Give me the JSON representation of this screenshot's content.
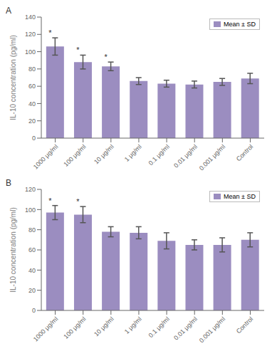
{
  "chart_data": [
    {
      "type": "bar",
      "title": "A",
      "categories": [
        "1000 μg/ml",
        "100 μg/ml",
        "10 μg/ml",
        "1 μg/ml",
        "0.1 μg/ml",
        "0.01 μg/ml",
        "0.001 μg/ml",
        "Control"
      ],
      "series": [
        {
          "name": "Mean ± SD",
          "color": "#9b8dc0",
          "values": [
            106,
            88,
            83,
            66,
            63,
            62,
            65,
            69
          ],
          "errors": [
            10,
            8,
            5,
            4,
            4,
            4,
            4,
            6
          ]
        }
      ],
      "annotations": [
        {
          "category": "1000 μg/ml",
          "text": "*"
        },
        {
          "category": "100 μg/ml",
          "text": "*"
        },
        {
          "category": "10 μg/ml",
          "text": "*"
        }
      ],
      "ylabel": "IL-10 concentration (pg/ml)",
      "ylim": [
        0,
        140
      ],
      "yticks": [
        0,
        20,
        40,
        60,
        80,
        100,
        120,
        140
      ],
      "legend": "upper right",
      "grid": false
    },
    {
      "type": "bar",
      "title": "B",
      "categories": [
        "1000 μg/ml",
        "100 μg/ml",
        "10 μg/ml",
        "1 μg/ml",
        "0.1 μg/ml",
        "0.01 μg/ml",
        "0.001 μg/ml",
        "Control"
      ],
      "series": [
        {
          "name": "Mean ± SD",
          "color": "#9b8dc0",
          "values": [
            97,
            95,
            78,
            77,
            69,
            65,
            65,
            70
          ],
          "errors": [
            7,
            8,
            5,
            6,
            8,
            5,
            7,
            7
          ]
        }
      ],
      "annotations": [
        {
          "category": "1000 μg/ml",
          "text": "*"
        },
        {
          "category": "100 μg/ml",
          "text": "*"
        }
      ],
      "ylabel": "IL-10 concentration (pg/ml)",
      "ylim": [
        0,
        120
      ],
      "yticks": [
        0,
        20,
        40,
        60,
        80,
        100,
        120
      ],
      "legend": "upper right",
      "grid": false
    }
  ]
}
